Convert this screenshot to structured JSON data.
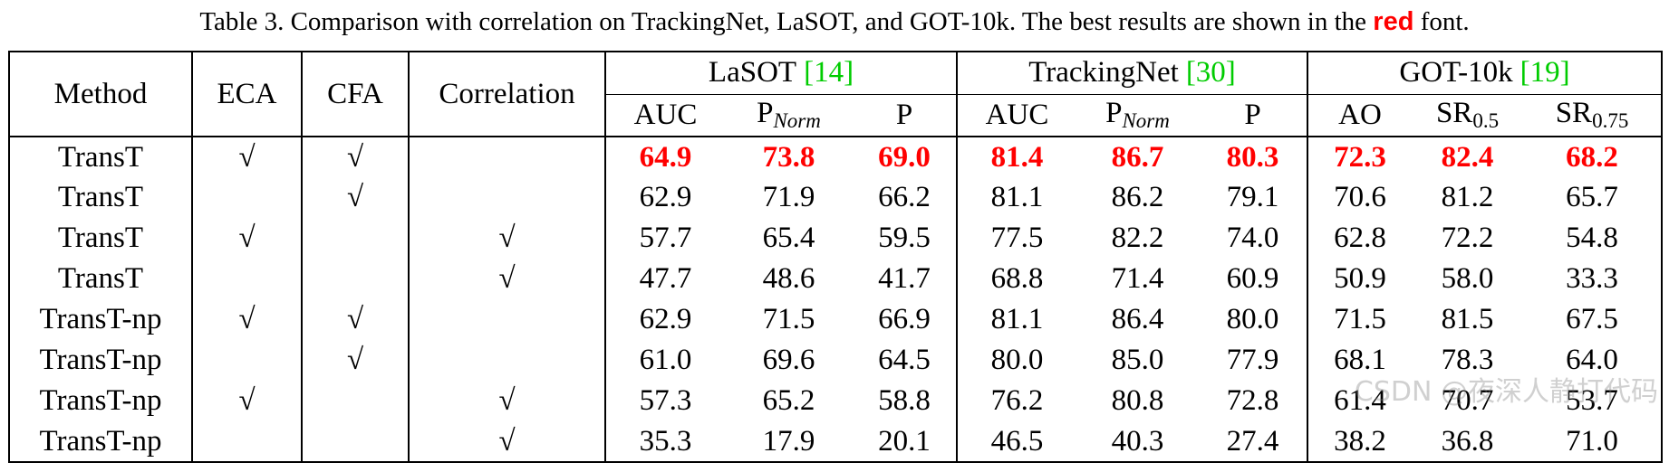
{
  "caption": {
    "text": "Table 3. Comparison with correlation on TrackingNet, LaSOT, and GOT-10k. The best results are shown in the",
    "highlight": "red",
    "end": "font.",
    "highlight_color": "#ff0000"
  },
  "table": {
    "headers": [
      "Method",
      "ECA",
      "CFA",
      "Correlation"
    ],
    "groups": [
      {
        "name": "LaSOT",
        "ref": "[14]",
        "columns": [
          {
            "main": "AUC"
          },
          {
            "main": "P",
            "sub": "Norm",
            "sub_italic": true
          },
          {
            "main": "P"
          }
        ]
      },
      {
        "name": "TrackingNet",
        "ref": "[30]",
        "columns": [
          {
            "main": "AUC"
          },
          {
            "main": "P",
            "sub": "Norm",
            "sub_italic": true
          },
          {
            "main": "P"
          }
        ]
      },
      {
        "name": "GOT-10k",
        "ref": "[19]",
        "columns": [
          {
            "main": "AO"
          },
          {
            "main": "SR",
            "sub": "0.5"
          },
          {
            "main": "SR",
            "sub": "0.75"
          }
        ]
      }
    ],
    "ref_color": "#00cc00",
    "rows": [
      {
        "method": "TransT",
        "eca": "√",
        "cfa": "√",
        "correlation": null,
        "best": true,
        "values": [
          "64.9",
          "73.8",
          "69.0",
          "81.4",
          "86.7",
          "80.3",
          "72.3",
          "82.4",
          "68.2"
        ]
      },
      {
        "method": "TransT",
        "eca": null,
        "cfa": "√",
        "correlation": null,
        "values": [
          "62.9",
          "71.9",
          "66.2",
          "81.1",
          "86.2",
          "79.1",
          "70.6",
          "81.2",
          "65.7"
        ]
      },
      {
        "method": "TransT",
        "eca": "√",
        "cfa": null,
        "correlation": "√",
        "values": [
          "57.7",
          "65.4",
          "59.5",
          "77.5",
          "82.2",
          "74.0",
          "62.8",
          "72.2",
          "54.8"
        ]
      },
      {
        "method": "TransT",
        "eca": null,
        "cfa": null,
        "correlation": "√",
        "values": [
          "47.7",
          "48.6",
          "41.7",
          "68.8",
          "71.4",
          "60.9",
          "50.9",
          "58.0",
          "33.3"
        ]
      },
      {
        "method": "TransT-np",
        "eca": "√",
        "cfa": "√",
        "correlation": null,
        "values": [
          "62.9",
          "71.5",
          "66.9",
          "81.1",
          "86.4",
          "80.0",
          "71.5",
          "81.5",
          "67.5"
        ]
      },
      {
        "method": "TransT-np",
        "eca": null,
        "cfa": "√",
        "correlation": null,
        "values": [
          "61.0",
          "69.6",
          "64.5",
          "80.0",
          "85.0",
          "77.9",
          "68.1",
          "78.3",
          "64.0"
        ]
      },
      {
        "method": "TransT-np",
        "eca": "√",
        "cfa": null,
        "correlation": "√",
        "values": [
          "57.3",
          "65.2",
          "58.8",
          "76.2",
          "80.8",
          "72.8",
          "61.4",
          "70.7",
          "53.7"
        ]
      },
      {
        "method": "TransT-np",
        "eca": null,
        "cfa": null,
        "correlation": "√",
        "values": [
          "35.3",
          "17.9",
          "20.1",
          "46.5",
          "40.3",
          "27.4",
          "38.2",
          "36.8",
          "71.0"
        ]
      }
    ]
  },
  "watermark": "CSDN @夜深人静打代码"
}
